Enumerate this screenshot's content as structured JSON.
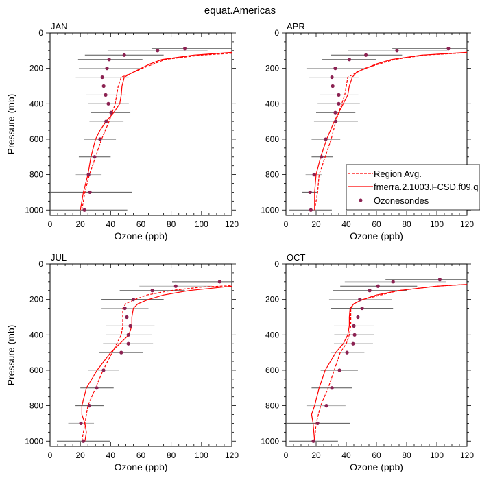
{
  "figure": {
    "title": "equat.Americas"
  },
  "legend": {
    "location": "lower-right of APR panel",
    "entries": [
      {
        "label": "Region Avg.",
        "style": "dashed-line",
        "color": "#ff0000"
      },
      {
        "label": "fmerra.2.1003.FCSD.f09.q",
        "style": "solid-line",
        "color": "#ff0000"
      },
      {
        "label": "Ozonesondes",
        "style": "marker",
        "color": "#8b2252"
      }
    ]
  },
  "colors": {
    "model": "#ff0000",
    "obs_marker": "#8b2252",
    "error_bar_dark": "#555555",
    "error_bar_light": "#aaaaaa",
    "axis": "#000000"
  },
  "chart_data": [
    {
      "type": "line",
      "panel": "JAN",
      "title": "JAN",
      "xlabel": "Ozone (ppb)",
      "ylabel": "Pressure (mb)",
      "xlim": [
        0,
        120
      ],
      "ylim": [
        1030,
        0
      ],
      "xticks": [
        "0",
        "20",
        "40",
        "60",
        "80",
        "100",
        "120"
      ],
      "yticks": [
        "0",
        "200",
        "400",
        "600",
        "800",
        "1000"
      ],
      "series": [
        {
          "name": "Region Avg.",
          "style": "dashed",
          "x": [
            21,
            23,
            26,
            30,
            34,
            39,
            41,
            43,
            44,
            45,
            47,
            53,
            61,
            76,
            100,
            120
          ],
          "p": [
            1000,
            900,
            800,
            700,
            600,
            500,
            450,
            400,
            350,
            300,
            250,
            230,
            200,
            150,
            125,
            115
          ]
        },
        {
          "name": "fmerra.2.1003.FCSD.f09.q",
          "style": "solid",
          "x": [
            20,
            22,
            25,
            27,
            30,
            33,
            37,
            42,
            46,
            47,
            47.5,
            49,
            53,
            60,
            66,
            74,
            95,
            120
          ],
          "p": [
            1000,
            900,
            800,
            700,
            600,
            550,
            500,
            450,
            400,
            350,
            300,
            250,
            230,
            200,
            175,
            150,
            125,
            110
          ]
        }
      ],
      "obs": {
        "name": "Ozonesondes",
        "p": [
          88,
          100,
          125,
          150,
          200,
          250,
          300,
          350,
          400,
          450,
          500,
          600,
          700,
          800,
          900,
          1000
        ],
        "mean": [
          89,
          71,
          49,
          39,
          37.6,
          34.5,
          35.4,
          36.7,
          38.5,
          40.3,
          37,
          33,
          29.4,
          25.4,
          26.3,
          22.7
        ],
        "low": [
          67,
          38,
          23,
          18.5,
          19,
          17,
          19.5,
          24,
          25,
          27,
          26,
          22.6,
          19,
          17,
          0,
          0
        ],
        "high": [
          125,
          104,
          75,
          61,
          60,
          52,
          51.6,
          50,
          52,
          53,
          48.5,
          43.5,
          40,
          34,
          54,
          51
        ]
      }
    },
    {
      "type": "line",
      "panel": "APR",
      "title": "APR",
      "xlabel": "Ozone (ppb)",
      "ylabel": "",
      "xlim": [
        0,
        120
      ],
      "ylim": [
        1030,
        0
      ],
      "xticks": [
        "0",
        "20",
        "40",
        "60",
        "80",
        "100",
        "120"
      ],
      "yticks": [
        "0",
        "200",
        "400",
        "600",
        "800",
        "1000"
      ],
      "series": [
        {
          "name": "Region Avg.",
          "style": "dashed",
          "x": [
            19,
            21,
            22,
            26,
            30,
            33,
            35,
            37,
            39,
            40,
            41,
            52,
            72,
            92,
            120
          ],
          "p": [
            1000,
            900,
            800,
            700,
            600,
            500,
            450,
            400,
            350,
            300,
            250,
            200,
            150,
            125,
            112
          ]
        },
        {
          "name": "fmerra.2.1003.FCSD.f09.q",
          "style": "solid",
          "x": [
            19,
            19,
            20,
            23,
            27,
            32,
            35,
            38,
            41,
            42,
            44,
            47,
            53,
            60,
            70,
            90,
            120
          ],
          "p": [
            1000,
            900,
            800,
            700,
            600,
            500,
            450,
            400,
            350,
            300,
            250,
            220,
            200,
            175,
            150,
            125,
            110
          ]
        }
      ],
      "obs": {
        "name": "Ozonesondes",
        "p": [
          88,
          100,
          125,
          150,
          200,
          250,
          300,
          350,
          400,
          450,
          500,
          600,
          700,
          800,
          900,
          1000
        ],
        "mean": [
          107.7,
          73.6,
          53,
          42,
          32.7,
          30.5,
          31,
          35,
          35,
          32.7,
          33,
          26.4,
          23.6,
          18.7,
          16,
          16.5
        ],
        "low": [
          70.5,
          41,
          30,
          24,
          13.6,
          15,
          18.6,
          22.7,
          21,
          20,
          18.6,
          17,
          17,
          13,
          10.5,
          2.3
        ],
        "high": [
          140,
          107,
          77,
          60,
          52,
          48.6,
          47,
          48,
          49,
          46,
          47.7,
          36,
          31,
          23.6,
          21,
          30.4
        ]
      }
    },
    {
      "type": "line",
      "panel": "JUL",
      "title": "JUL",
      "xlabel": "Ozone (ppb)",
      "ylabel": "Pressure (mb)",
      "xlim": [
        0,
        120
      ],
      "ylim": [
        1030,
        0
      ],
      "xticks": [
        "0",
        "20",
        "40",
        "60",
        "80",
        "100",
        "120"
      ],
      "yticks": [
        "0",
        "200",
        "400",
        "600",
        "800",
        "1000"
      ],
      "series": [
        {
          "name": "Region Avg.",
          "style": "dashed",
          "x": [
            21,
            22,
            23,
            25,
            30,
            35,
            41,
            44,
            47,
            48,
            48,
            48,
            50,
            56,
            64,
            80,
            100,
            120
          ],
          "p": [
            1000,
            950,
            900,
            800,
            700,
            600,
            500,
            450,
            400,
            350,
            300,
            250,
            225,
            200,
            175,
            150,
            130,
            122
          ]
        },
        {
          "name": "fmerra.2.1003.FCSD.f09.q",
          "style": "solid",
          "x": [
            23,
            24,
            23,
            21,
            21,
            24,
            31,
            40,
            46,
            52,
            54,
            54,
            55,
            58,
            65,
            75,
            92,
            120
          ],
          "p": [
            1000,
            950,
            900,
            850,
            800,
            700,
            600,
            500,
            450,
            400,
            350,
            300,
            250,
            225,
            200,
            175,
            150,
            125
          ]
        }
      ],
      "obs": {
        "name": "Ozonesondes",
        "p": [
          100,
          125,
          150,
          200,
          250,
          300,
          350,
          400,
          450,
          500,
          600,
          700,
          800,
          900,
          1000
        ],
        "mean": [
          112,
          83,
          67.5,
          55,
          49.4,
          50.7,
          53,
          51.7,
          51.7,
          47,
          35.3,
          30.8,
          25.9,
          20.4,
          22
        ],
        "low": [
          80.6,
          59,
          46,
          34,
          34,
          37,
          37,
          37,
          35,
          32.6,
          25,
          20,
          16.8,
          12,
          4.5
        ],
        "high": [
          140,
          107,
          89,
          75,
          65,
          65,
          69,
          67,
          68,
          61.5,
          45.7,
          42,
          35.3,
          29,
          39.4
        ]
      }
    },
    {
      "type": "line",
      "panel": "OCT",
      "title": "OCT",
      "xlabel": "Ozone (ppb)",
      "ylabel": "",
      "xlim": [
        0,
        120
      ],
      "ylim": [
        1030,
        0
      ],
      "xticks": [
        "0",
        "20",
        "40",
        "60",
        "80",
        "100",
        "120"
      ],
      "yticks": [
        "0",
        "200",
        "400",
        "600",
        "800",
        "1000"
      ],
      "series": [
        {
          "name": "Region Avg.",
          "style": "dashed",
          "x": [
            19,
            20,
            23,
            28,
            32,
            36,
            40,
            42,
            43,
            43,
            43,
            45,
            51,
            75,
            100,
            120
          ],
          "p": [
            1000,
            900,
            800,
            700,
            600,
            500,
            450,
            400,
            350,
            300,
            250,
            225,
            200,
            150,
            125,
            115
          ]
        },
        {
          "name": "fmerra.2.1003.FCSD.f09.q",
          "style": "solid",
          "x": [
            19,
            18,
            17,
            19,
            22,
            26,
            33,
            38,
            41,
            42,
            42,
            42.5,
            45,
            51,
            60,
            75,
            100,
            120
          ],
          "p": [
            1000,
            900,
            850,
            800,
            700,
            600,
            500,
            450,
            400,
            350,
            300,
            250,
            225,
            200,
            175,
            150,
            125,
            115
          ]
        }
      ],
      "obs": {
        "name": "Ozonesondes",
        "p": [
          88,
          100,
          125,
          150,
          200,
          250,
          300,
          350,
          400,
          450,
          500,
          600,
          700,
          800,
          900,
          1000
        ],
        "mean": [
          102,
          71,
          61,
          55.5,
          49,
          50.5,
          47.7,
          45,
          45.5,
          44.5,
          40.5,
          35.5,
          30.5,
          26.8,
          21,
          18.2
        ],
        "low": [
          66,
          39,
          36,
          31,
          28.6,
          30,
          30,
          31.8,
          32,
          31.8,
          29.5,
          23,
          17,
          13.6,
          0,
          2.3
        ],
        "high": [
          140,
          106,
          87,
          80,
          70,
          71,
          65.5,
          58.6,
          58.6,
          57.7,
          52,
          47.7,
          44,
          39.5,
          42.3,
          34.5
        ]
      }
    }
  ]
}
